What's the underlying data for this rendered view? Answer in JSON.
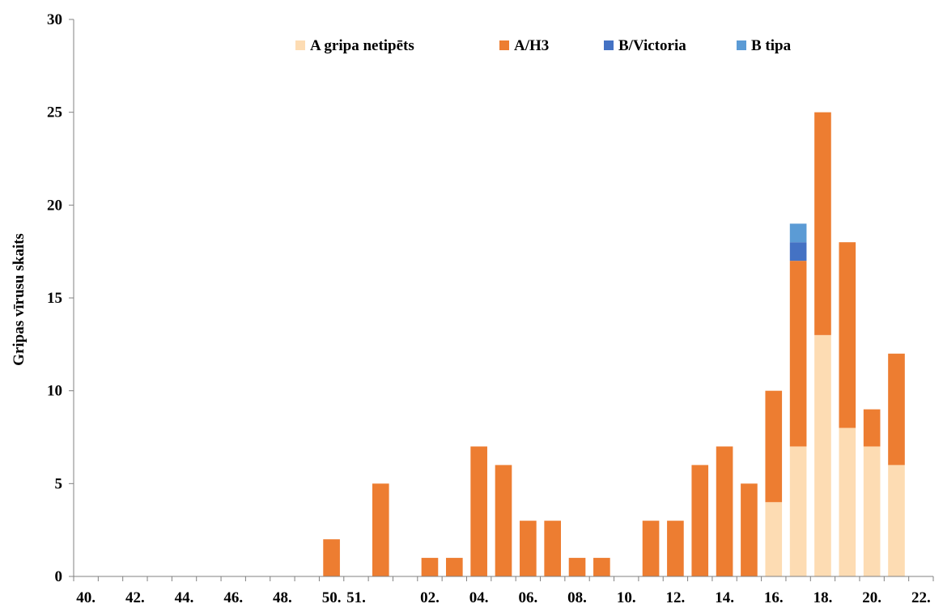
{
  "chart_data": {
    "type": "bar",
    "stacked": true,
    "title": "",
    "xlabel": "",
    "ylabel": "Gripas vīrusu skaits",
    "ylim": [
      0,
      30
    ],
    "yticks": [
      0,
      5,
      10,
      15,
      20,
      25,
      30
    ],
    "grid": false,
    "legend_position": "top",
    "categories": [
      "40.",
      "41.",
      "42.",
      "43.",
      "44.",
      "45.",
      "46.",
      "47.",
      "48.",
      "49.",
      "50.",
      "51.",
      "52.",
      "01.",
      "02.",
      "03.",
      "04.",
      "05.",
      "06.",
      "07.",
      "08.",
      "09.",
      "10.",
      "11.",
      "12.",
      "13.",
      "14.",
      "15.",
      "16.",
      "17.",
      "18.",
      "19.",
      "20.",
      "21.",
      "22."
    ],
    "xtick_labels": [
      "40.",
      "42.",
      "44.",
      "46.",
      "48.",
      "50.",
      "51.",
      "02.",
      "04.",
      "06.",
      "08.",
      "10.",
      "12.",
      "14.",
      "16.",
      "18.",
      "20.",
      "22."
    ],
    "xtick_label_positions": [
      0,
      2,
      4,
      6,
      8,
      10,
      11,
      14,
      16,
      18,
      20,
      22,
      24,
      26,
      28,
      30,
      32,
      34
    ],
    "series": [
      {
        "name": "A gripa netipēts",
        "color": "#FDDCB3",
        "values": [
          0,
          0,
          0,
          0,
          0,
          0,
          0,
          0,
          0,
          0,
          0,
          0,
          0,
          0,
          0,
          0,
          0,
          0,
          0,
          0,
          0,
          0,
          0,
          0,
          0,
          0,
          0,
          0,
          4,
          7,
          13,
          8,
          7,
          6,
          0
        ]
      },
      {
        "name": "A/H3",
        "color": "#ED7D31",
        "values": [
          0,
          0,
          0,
          0,
          0,
          0,
          0,
          0,
          0,
          0,
          2,
          0,
          5,
          0,
          1,
          1,
          7,
          6,
          3,
          3,
          1,
          1,
          0,
          3,
          3,
          6,
          7,
          5,
          6,
          10,
          12,
          10,
          2,
          6,
          0
        ]
      },
      {
        "name": "B/Victoria",
        "color": "#4472C4",
        "values": [
          0,
          0,
          0,
          0,
          0,
          0,
          0,
          0,
          0,
          0,
          0,
          0,
          0,
          0,
          0,
          0,
          0,
          0,
          0,
          0,
          0,
          0,
          0,
          0,
          0,
          0,
          0,
          0,
          0,
          1,
          0,
          0,
          0,
          0,
          0
        ]
      },
      {
        "name": "B tipa",
        "color": "#5B9BD5",
        "values": [
          0,
          0,
          0,
          0,
          0,
          0,
          0,
          0,
          0,
          0,
          0,
          0,
          0,
          0,
          0,
          0,
          0,
          0,
          0,
          0,
          0,
          0,
          0,
          0,
          0,
          0,
          0,
          0,
          0,
          1,
          0,
          0,
          0,
          0,
          0
        ]
      }
    ]
  }
}
